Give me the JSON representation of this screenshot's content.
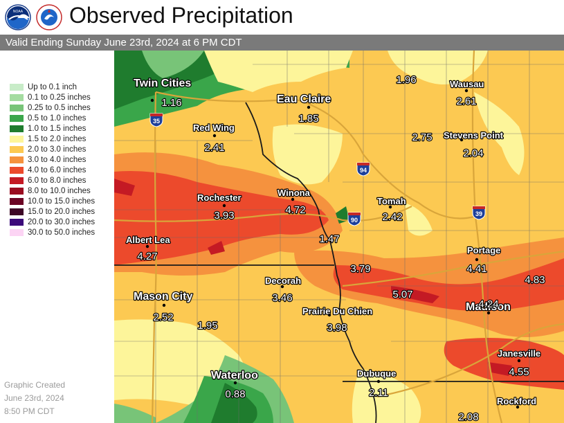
{
  "header": {
    "title": "Observed Precipitation",
    "subtitle": "Valid Ending Sunday June 23rd, 2024 at 6 PM CDT",
    "logos": [
      {
        "name": "noaa-logo",
        "text": "NOAA"
      },
      {
        "name": "nws-logo",
        "text": "NATIONAL WEATHER SERVICE"
      }
    ]
  },
  "legend": [
    {
      "label": "Up to 0.1 inch",
      "color": "#c8ecc8"
    },
    {
      "label": "0.1 to 0.25 inches",
      "color": "#a4dca0"
    },
    {
      "label": "0.25 to 0.5 inches",
      "color": "#78c478"
    },
    {
      "label": "0.5 to 1.0 inches",
      "color": "#3aa64a"
    },
    {
      "label": "1.0 to 1.5 inches",
      "color": "#1f7c2e"
    },
    {
      "label": "1.5 to 2.0 inches",
      "color": "#fdf59a"
    },
    {
      "label": "2.0 to 3.0 inches",
      "color": "#fcc952"
    },
    {
      "label": "3.0 to 4.0 inches",
      "color": "#f5923e"
    },
    {
      "label": "4.0 to 6.0 inches",
      "color": "#ec4a2c"
    },
    {
      "label": "6.0 to 8.0 inches",
      "color": "#c41a24"
    },
    {
      "label": "8.0 to 10.0 inches",
      "color": "#9a0c20"
    },
    {
      "label": "10.0 to 15.0 inches",
      "color": "#6c0424"
    },
    {
      "label": "15.0 to 20.0 inches",
      "color": "#3e0626"
    },
    {
      "label": "20.0 to 30.0 inches",
      "color": "#3c0a7a"
    },
    {
      "label": "30.0 to 50.0 inches",
      "color": "#fcd4f4"
    }
  ],
  "credit": [
    "Graphic Created",
    "June 23rd, 2024",
    "8:50 PM CDT"
  ],
  "map": {
    "cities": [
      "Twin Cities",
      "Eau Claire",
      "Wausau",
      "Red Wing",
      "Stevens Point",
      "Rochester",
      "Winona",
      "Tomah",
      "Albert Lea",
      "Portage",
      "Decorah",
      "Mason City",
      "Madison",
      "Prairie Du Chien",
      "Janesville",
      "Waterloo",
      "Dubuque",
      "Rockford"
    ],
    "values": [
      "1.16",
      "1.85",
      "1.96",
      "2.61",
      "2.41",
      "2.75",
      "2.04",
      "3.93",
      "4.72",
      "2.42",
      "1.47",
      "4.27",
      "3.79",
      "4.41",
      "4.83",
      "3.46",
      "5.07",
      "2.52",
      "1.95",
      "3.98",
      "4.24",
      "4.55",
      "0.88",
      "2.11",
      "2.08"
    ],
    "shields": [
      "35",
      "94",
      "90",
      "39"
    ]
  }
}
